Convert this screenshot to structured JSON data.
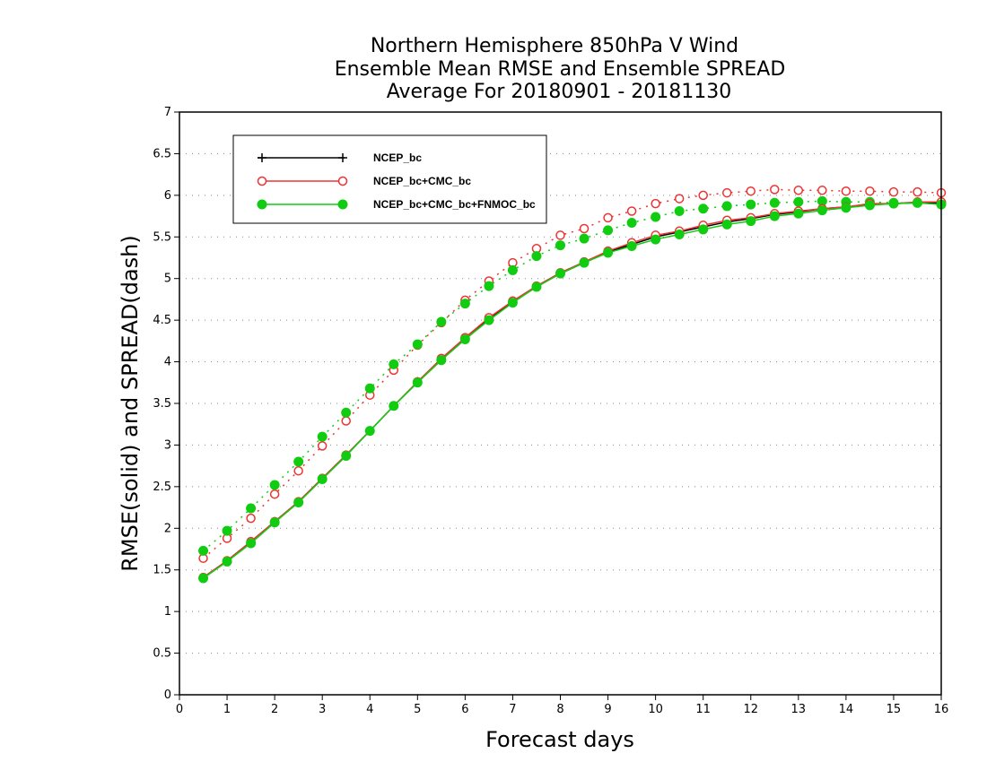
{
  "chart_data": {
    "type": "line",
    "title": [
      "Northern Hemisphere 850hPa V Wind",
      "Ensemble Mean RMSE and Ensemble SPREAD",
      "Average For 20180901 - 20181130"
    ],
    "xlabel": "Forecast days",
    "ylabel": "RMSE(solid) and SPREAD(dash)",
    "xlim": [
      0,
      16
    ],
    "ylim": [
      0,
      7
    ],
    "xticks": [
      "0",
      "1",
      "2",
      "3",
      "4",
      "5",
      "6",
      "7",
      "8",
      "9",
      "10",
      "11",
      "12",
      "13",
      "14",
      "15",
      "16"
    ],
    "yticks": [
      "0",
      "0.5",
      "1",
      "1.5",
      "2",
      "2.5",
      "3",
      "3.5",
      "4",
      "4.5",
      "5",
      "5.5",
      "6",
      "6.5",
      "7"
    ],
    "grid": true,
    "legend_position": "top-left",
    "x": [
      0.5,
      1,
      1.5,
      2,
      2.5,
      3,
      3.5,
      4,
      4.5,
      5,
      5.5,
      6,
      6.5,
      7,
      7.5,
      8,
      8.5,
      9,
      9.5,
      10,
      10.5,
      11,
      11.5,
      12,
      12.5,
      13,
      13.5,
      14,
      14.5,
      15,
      15.5,
      16
    ],
    "series": [
      {
        "name": "NCEP_bc",
        "color": "#000000",
        "marker": "plus",
        "rmse": [
          1.41,
          1.61,
          1.84,
          2.08,
          2.32,
          2.6,
          2.88,
          3.17,
          3.47,
          3.76,
          4.03,
          4.29,
          4.52,
          4.72,
          4.9,
          5.06,
          5.19,
          5.32,
          5.41,
          5.5,
          5.56,
          5.62,
          5.68,
          5.72,
          5.77,
          5.8,
          5.84,
          5.86,
          5.89,
          5.9,
          5.91,
          5.91
        ],
        "spread": []
      },
      {
        "name": "NCEP_bc+CMC_bc",
        "color": "#ee3333",
        "marker": "open-circle",
        "rmse": [
          1.41,
          1.61,
          1.84,
          2.08,
          2.32,
          2.6,
          2.88,
          3.17,
          3.47,
          3.76,
          4.04,
          4.29,
          4.53,
          4.73,
          4.91,
          5.07,
          5.2,
          5.33,
          5.43,
          5.52,
          5.57,
          5.64,
          5.7,
          5.73,
          5.78,
          5.81,
          5.84,
          5.86,
          5.9,
          5.9,
          5.92,
          5.92
        ],
        "spread": [
          1.64,
          1.88,
          2.12,
          2.41,
          2.69,
          2.99,
          3.29,
          3.6,
          3.9,
          4.2,
          4.47,
          4.74,
          4.97,
          5.19,
          5.36,
          5.52,
          5.6,
          5.73,
          5.81,
          5.9,
          5.96,
          6.0,
          6.03,
          6.05,
          6.07,
          6.06,
          6.06,
          6.05,
          6.05,
          6.04,
          6.04,
          6.03
        ]
      },
      {
        "name": "NCEP_bc+CMC_bc+FNMOC_bc",
        "color": "#11cc11",
        "marker": "filled-circle",
        "rmse": [
          1.4,
          1.6,
          1.82,
          2.07,
          2.31,
          2.59,
          2.87,
          3.17,
          3.47,
          3.75,
          4.02,
          4.27,
          4.5,
          4.71,
          4.9,
          5.06,
          5.19,
          5.31,
          5.39,
          5.47,
          5.53,
          5.59,
          5.65,
          5.69,
          5.75,
          5.78,
          5.82,
          5.85,
          5.88,
          5.9,
          5.91,
          5.89
        ],
        "spread": [
          1.73,
          1.97,
          2.24,
          2.52,
          2.8,
          3.1,
          3.39,
          3.68,
          3.97,
          4.21,
          4.48,
          4.7,
          4.91,
          5.1,
          5.27,
          5.4,
          5.48,
          5.58,
          5.67,
          5.74,
          5.81,
          5.84,
          5.87,
          5.89,
          5.91,
          5.92,
          5.93,
          5.92,
          5.92,
          5.91,
          5.91,
          5.91
        ]
      }
    ]
  }
}
